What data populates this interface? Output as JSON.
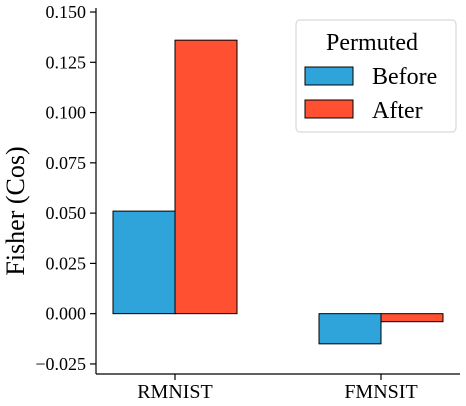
{
  "chart_data": {
    "type": "bar",
    "categories": [
      "RMNIST",
      "FMNSIT"
    ],
    "series": [
      {
        "name": "Before",
        "values": [
          0.051,
          -0.015
        ],
        "color": "#2ea4db"
      },
      {
        "name": "After",
        "values": [
          0.136,
          -0.004
        ],
        "color": "#ff5131"
      }
    ],
    "ylabel": "Fisher (Cos)",
    "xlabel": "",
    "ylim": [
      -0.03,
      0.152
    ],
    "yticks": [
      -0.025,
      0.0,
      0.025,
      0.05,
      0.075,
      0.1,
      0.125,
      0.15
    ],
    "ytick_labels": [
      "−0.025",
      "0.000",
      "0.025",
      "0.050",
      "0.075",
      "0.100",
      "0.125",
      "0.150"
    ],
    "legend": {
      "title": "Permuted",
      "placement": "top-right"
    },
    "grid": false
  }
}
